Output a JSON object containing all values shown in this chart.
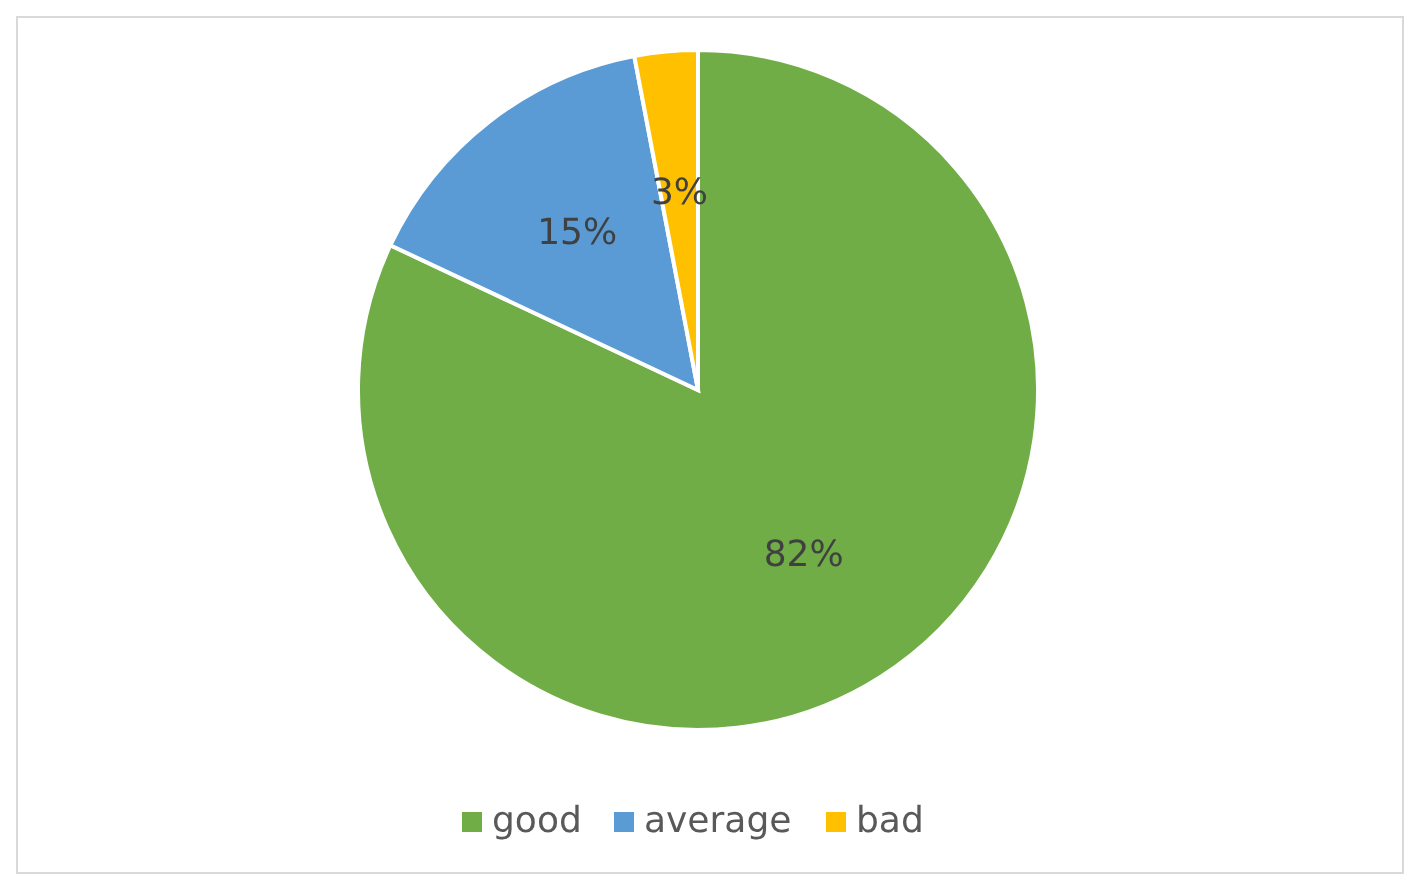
{
  "chart_data": {
    "type": "pie",
    "categories": [
      "good",
      "average",
      "bad"
    ],
    "values": [
      82,
      15,
      3
    ],
    "colors": [
      "#70ad47",
      "#5b9bd5",
      "#ffc000"
    ],
    "value_labels": [
      "82%",
      "15%",
      "3%"
    ],
    "legend": "bottom"
  }
}
